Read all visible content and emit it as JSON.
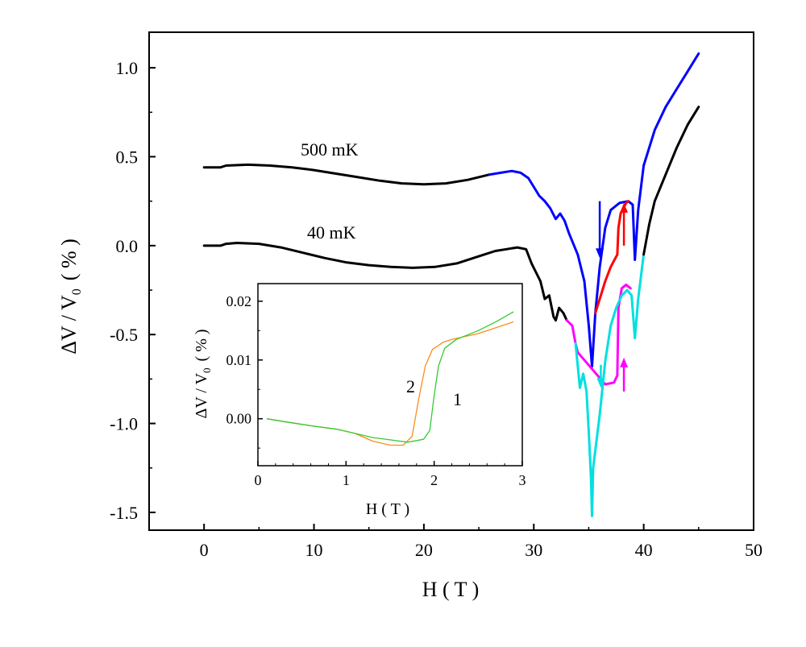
{
  "chart_data": [
    {
      "type": "line",
      "xlabel": "H ( T )",
      "ylabel": "ΔV / V0 ( % )",
      "ylabel_parts": {
        "main": "ΔV / V",
        "sub": "0",
        "unit": "( % )"
      },
      "xlim": [
        -5,
        50
      ],
      "ylim": [
        -1.6,
        1.2
      ],
      "xticks": [
        0,
        10,
        20,
        30,
        40,
        50
      ],
      "xtick_labels": [
        "0",
        "10",
        "20",
        "30",
        "40",
        "50"
      ],
      "yticks": [
        1.0,
        0.5,
        0.0,
        -0.5,
        -1.0,
        -1.5
      ],
      "ytick_labels": [
        "1.0",
        "0.5",
        "0.0",
        "-0.5",
        "-1.0",
        "-1.5"
      ],
      "grid": false,
      "annotations": [
        "500 mK",
        "40 mK"
      ],
      "series": [
        {
          "color": "#000000",
          "points": [
            [
              0,
              0.44
            ],
            [
              1.5,
              0.44
            ],
            [
              2,
              0.45
            ],
            [
              4,
              0.455
            ],
            [
              6,
              0.45
            ],
            [
              8,
              0.44
            ],
            [
              10,
              0.425
            ],
            [
              12,
              0.405
            ],
            [
              14,
              0.385
            ],
            [
              16,
              0.365
            ],
            [
              18,
              0.35
            ],
            [
              20,
              0.345
            ],
            [
              22,
              0.35
            ],
            [
              24,
              0.37
            ],
            [
              26,
              0.4
            ]
          ]
        },
        {
          "color": "#0000ff",
          "points": [
            [
              26,
              0.4
            ],
            [
              27,
              0.41
            ],
            [
              28,
              0.42
            ],
            [
              28.8,
              0.41
            ],
            [
              29.5,
              0.38
            ],
            [
              30,
              0.33
            ],
            [
              30.5,
              0.28
            ],
            [
              31,
              0.25
            ],
            [
              31.5,
              0.21
            ],
            [
              32,
              0.15
            ],
            [
              32.4,
              0.18
            ],
            [
              32.8,
              0.14
            ],
            [
              33.2,
              0.07
            ],
            [
              34,
              -0.05
            ],
            [
              34.6,
              -0.2
            ],
            [
              35,
              -0.45
            ],
            [
              35.3,
              -0.68
            ],
            [
              35.6,
              -0.38
            ],
            [
              36,
              -0.12
            ],
            [
              36.5,
              0.1
            ],
            [
              37,
              0.2
            ],
            [
              37.8,
              0.24
            ],
            [
              38.6,
              0.25
            ],
            [
              39,
              0.23
            ],
            [
              39.2,
              -0.08
            ],
            [
              39.5,
              0.2
            ],
            [
              40,
              0.45
            ],
            [
              41,
              0.65
            ],
            [
              42,
              0.78
            ],
            [
              43,
              0.88
            ],
            [
              44,
              0.98
            ],
            [
              45,
              1.08
            ]
          ]
        },
        {
          "color": "#ff0000",
          "points": [
            [
              35.6,
              -0.38
            ],
            [
              36,
              -0.3
            ],
            [
              36.5,
              -0.2
            ],
            [
              37,
              -0.12
            ],
            [
              37.6,
              -0.05
            ],
            [
              37.7,
              0.1
            ],
            [
              37.9,
              0.18
            ],
            [
              38.4,
              0.24
            ],
            [
              38.6,
              0.25
            ]
          ]
        },
        {
          "color": "#000000",
          "points": [
            [
              0,
              0.0
            ],
            [
              1.5,
              0.0
            ],
            [
              2,
              0.01
            ],
            [
              3,
              0.015
            ],
            [
              5,
              0.01
            ],
            [
              7,
              -0.01
            ],
            [
              9,
              -0.04
            ],
            [
              11,
              -0.07
            ],
            [
              13,
              -0.095
            ],
            [
              15,
              -0.11
            ],
            [
              17,
              -0.12
            ],
            [
              19,
              -0.125
            ],
            [
              21,
              -0.12
            ],
            [
              23,
              -0.1
            ],
            [
              25,
              -0.06
            ],
            [
              26.5,
              -0.03
            ],
            [
              27.5,
              -0.02
            ],
            [
              28.5,
              -0.01
            ],
            [
              29.3,
              -0.02
            ],
            [
              29.8,
              -0.1
            ],
            [
              30.2,
              -0.15
            ],
            [
              30.6,
              -0.2
            ],
            [
              31,
              -0.3
            ],
            [
              31.4,
              -0.28
            ],
            [
              31.8,
              -0.4
            ],
            [
              32,
              -0.42
            ],
            [
              32.3,
              -0.35
            ],
            [
              32.7,
              -0.38
            ],
            [
              33,
              -0.42
            ]
          ]
        },
        {
          "color": "#ff00ff",
          "points": [
            [
              33,
              -0.42
            ],
            [
              33.5,
              -0.45
            ],
            [
              33.8,
              -0.55
            ],
            [
              34,
              -0.6
            ],
            [
              36.5,
              -0.78
            ],
            [
              37.3,
              -0.77
            ],
            [
              37.6,
              -0.73
            ],
            [
              37.7,
              -0.35
            ],
            [
              38,
              -0.24
            ],
            [
              38.4,
              -0.22
            ],
            [
              38.8,
              -0.24
            ]
          ]
        },
        {
          "color": "#00e0e0",
          "points": [
            [
              33.8,
              -0.55
            ],
            [
              34.2,
              -0.8
            ],
            [
              34.5,
              -0.72
            ],
            [
              34.8,
              -0.82
            ],
            [
              35,
              -1.05
            ],
            [
              35.2,
              -1.3
            ],
            [
              35.3,
              -1.52
            ],
            [
              35.4,
              -1.25
            ],
            [
              35.7,
              -1.1
            ],
            [
              36,
              -0.95
            ],
            [
              36.5,
              -0.65
            ],
            [
              37,
              -0.45
            ],
            [
              37.5,
              -0.35
            ],
            [
              38,
              -0.28
            ],
            [
              38.5,
              -0.25
            ],
            [
              38.9,
              -0.28
            ],
            [
              39.2,
              -0.52
            ],
            [
              39.5,
              -0.3
            ],
            [
              40,
              -0.05
            ]
          ]
        },
        {
          "color": "#000000",
          "points": [
            [
              40,
              -0.05
            ],
            [
              40.5,
              0.12
            ],
            [
              41,
              0.25
            ],
            [
              42,
              0.4
            ],
            [
              43,
              0.55
            ],
            [
              44,
              0.68
            ],
            [
              45,
              0.78
            ]
          ]
        }
      ],
      "arrows": [
        {
          "color": "#0000ff",
          "x": 36.0,
          "y_from": 0.25,
          "y_to": -0.07,
          "direction": "down"
        },
        {
          "color": "#ff0000",
          "x": 38.2,
          "y_from": 0.0,
          "y_to": 0.24,
          "direction": "up"
        },
        {
          "color": "#00e0e0",
          "x": 36.1,
          "y_from": -0.67,
          "y_to": -0.8,
          "direction": "down"
        },
        {
          "color": "#ff00ff",
          "x": 38.2,
          "y_from": -0.82,
          "y_to": -0.63,
          "direction": "up"
        }
      ]
    },
    {
      "type": "line",
      "xlabel": "H ( T )",
      "ylabel": "ΔV / V0 ( % )",
      "ylabel_parts": {
        "main": "ΔV / V",
        "sub": "0",
        "unit": "( % )"
      },
      "xlim": [
        0,
        3
      ],
      "ylim": [
        -0.008,
        0.023
      ],
      "xticks": [
        0,
        1,
        2,
        3
      ],
      "xtick_labels": [
        "0",
        "1",
        "2",
        "3"
      ],
      "yticks": [
        0.02,
        0.01,
        0.0
      ],
      "ytick_labels": [
        "0.02",
        "0.01",
        "0.00"
      ],
      "annotations": [
        "2",
        "1"
      ],
      "series": [
        {
          "color": "#ff8c1a",
          "points": [
            [
              0.1,
              0.0
            ],
            [
              0.3,
              -0.0005
            ],
            [
              0.6,
              -0.0012
            ],
            [
              0.9,
              -0.0018
            ],
            [
              1.1,
              -0.0025
            ],
            [
              1.3,
              -0.0038
            ],
            [
              1.5,
              -0.0045
            ],
            [
              1.65,
              -0.0045
            ],
            [
              1.75,
              -0.003
            ],
            [
              1.82,
              0.003
            ],
            [
              1.9,
              0.009
            ],
            [
              1.98,
              0.0118
            ],
            [
              2.1,
              0.013
            ],
            [
              2.2,
              0.0135
            ],
            [
              2.5,
              0.0145
            ],
            [
              2.7,
              0.0155
            ],
            [
              2.9,
              0.0165
            ]
          ]
        },
        {
          "color": "#33cc33",
          "points": [
            [
              0.1,
              0.0
            ],
            [
              0.3,
              -0.0005
            ],
            [
              0.6,
              -0.0012
            ],
            [
              0.9,
              -0.0018
            ],
            [
              1.1,
              -0.0025
            ],
            [
              1.3,
              -0.0032
            ],
            [
              1.5,
              -0.0036
            ],
            [
              1.7,
              -0.004
            ],
            [
              1.88,
              -0.0035
            ],
            [
              1.95,
              -0.002
            ],
            [
              2.0,
              0.004
            ],
            [
              2.05,
              0.009
            ],
            [
              2.12,
              0.012
            ],
            [
              2.25,
              0.0135
            ],
            [
              2.5,
              0.015
            ],
            [
              2.7,
              0.0165
            ],
            [
              2.9,
              0.0182
            ]
          ]
        }
      ]
    }
  ]
}
